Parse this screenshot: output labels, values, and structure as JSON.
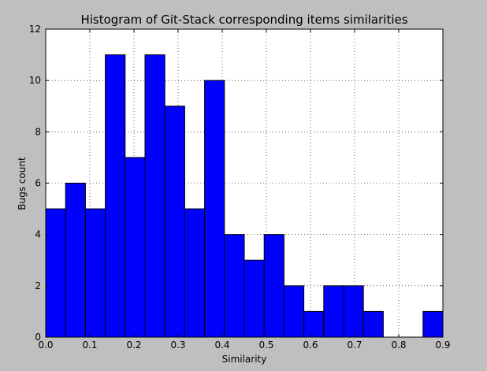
{
  "chart_data": {
    "type": "bar",
    "title": "Histogram of Git-Stack corresponding items similarities",
    "xlabel": "Similarity",
    "ylabel": "Bugs count",
    "xlim": [
      0.0,
      0.9
    ],
    "ylim": [
      0,
      12
    ],
    "xticks": [
      "0.0",
      "0.1",
      "0.2",
      "0.3",
      "0.4",
      "0.5",
      "0.6",
      "0.7",
      "0.8",
      "0.9"
    ],
    "yticks": [
      "0",
      "2",
      "4",
      "6",
      "8",
      "10",
      "12"
    ],
    "bin_width": 0.045,
    "bin_starts": [
      0.0,
      0.045,
      0.09,
      0.135,
      0.18,
      0.225,
      0.27,
      0.315,
      0.36,
      0.405,
      0.45,
      0.495,
      0.54,
      0.585,
      0.63,
      0.675,
      0.72,
      0.765,
      0.81,
      0.855
    ],
    "values": [
      5,
      6,
      5,
      11,
      7,
      11,
      9,
      5,
      10,
      4,
      3,
      4,
      2,
      1,
      2,
      2,
      1,
      0,
      0,
      1
    ],
    "grid": true,
    "bar_color": "#0000ff",
    "background_color": "#bfbfbf",
    "plot_background_color": "#ffffff"
  }
}
